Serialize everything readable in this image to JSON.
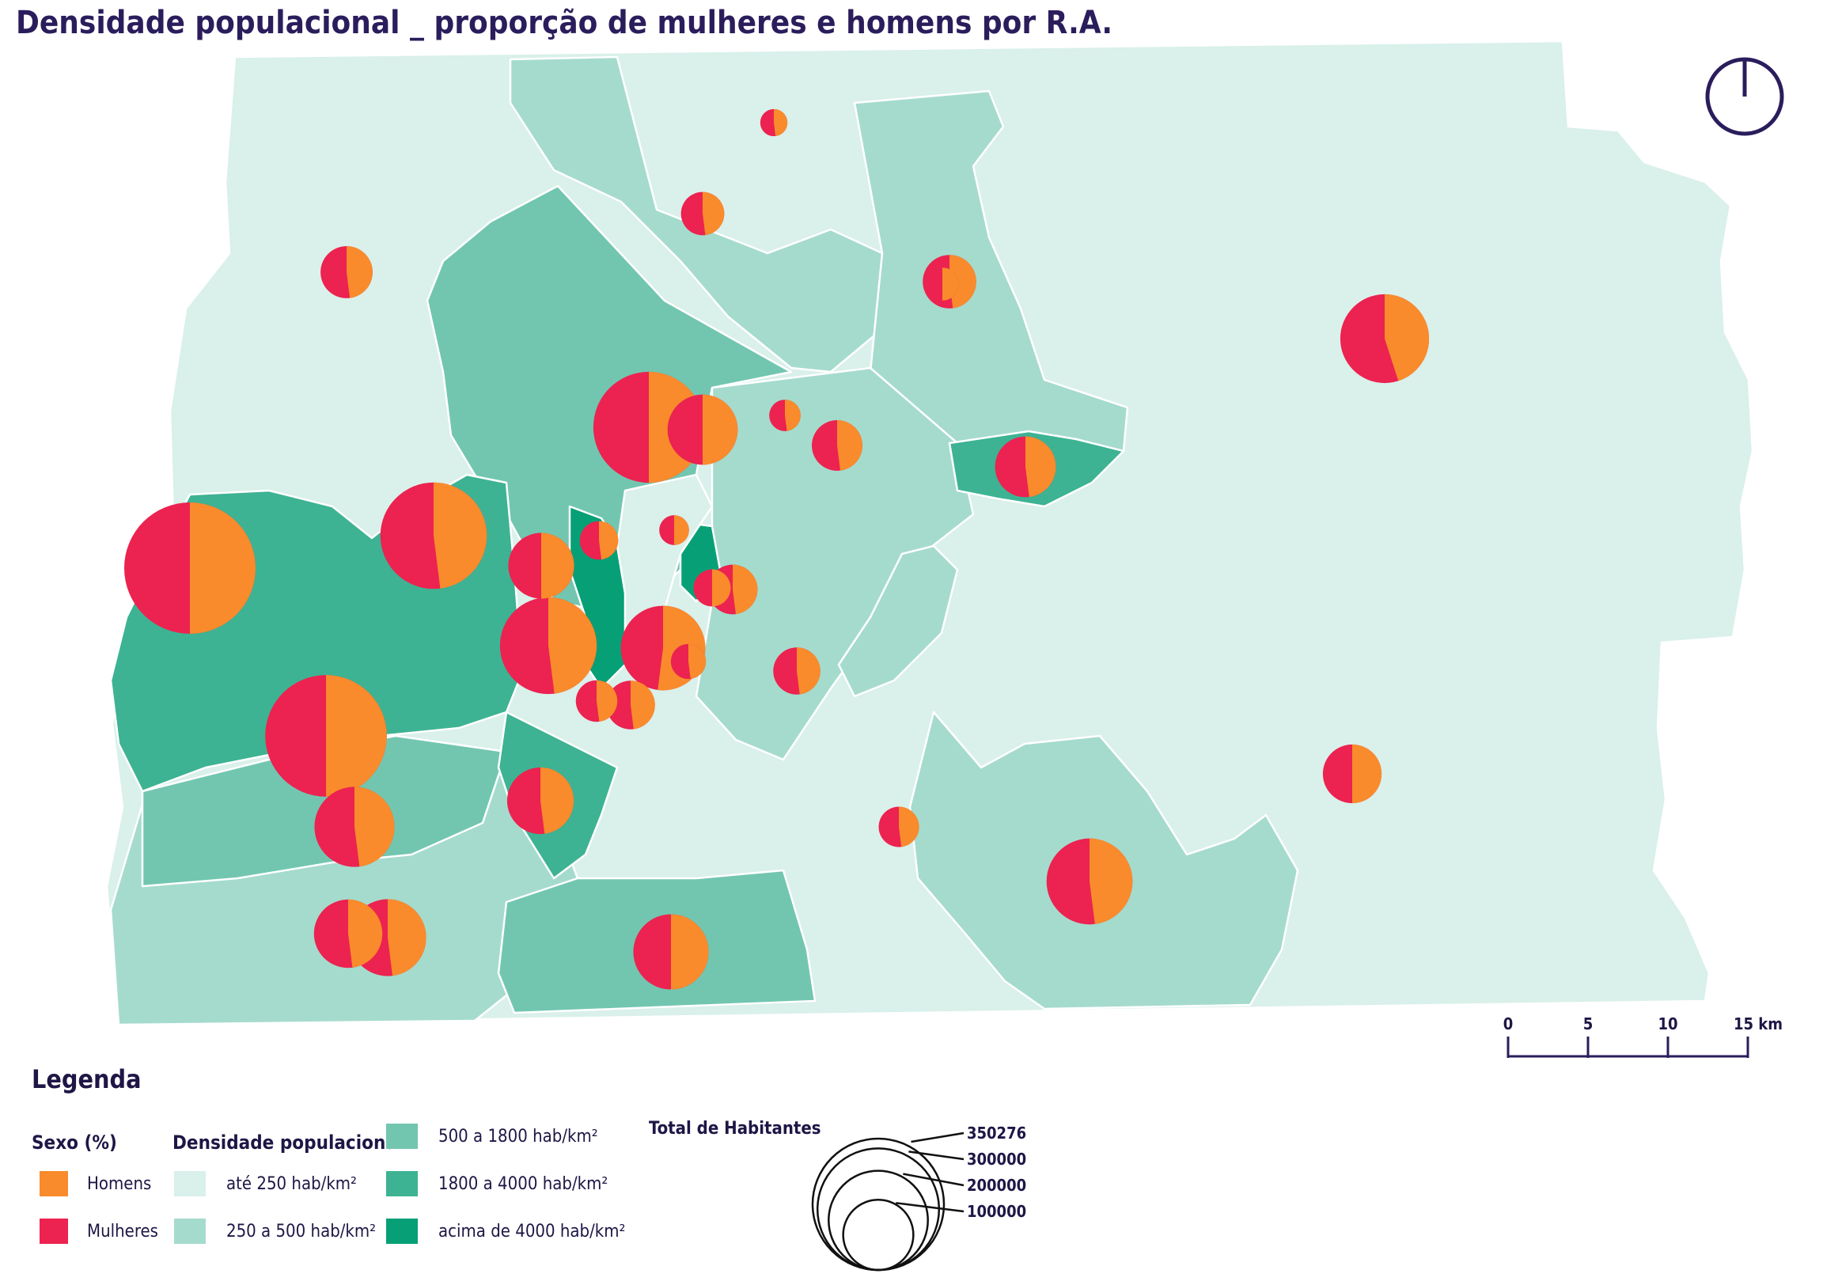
{
  "title": "Densidade populacional _ proporção de mulheres e homens por R.A.",
  "colors": {
    "homens": "#f98b2c",
    "mulheres": "#ec2250",
    "dens_ate_250": "#daf0ea",
    "dens_250_500": "#a5dbcd",
    "dens_500_1800": "#72c6b0",
    "dens_1800_4000": "#3db393",
    "dens_acima_4000": "#07a076",
    "ink": "#2b1d5c"
  },
  "north_arrow": {
    "icon": "north-arrow-icon"
  },
  "scale_bar": {
    "ticks": [
      "0",
      "5",
      "10",
      "15 km"
    ]
  },
  "legend": {
    "title": "Legenda",
    "sexo": {
      "title": "Sexo (%)",
      "items": [
        {
          "label": "Homens",
          "color": "#f98b2c"
        },
        {
          "label": "Mulheres",
          "color": "#ec2250"
        }
      ]
    },
    "densidade": {
      "title": "Densidade populacional",
      "items": [
        {
          "label": "até 250 hab/km²",
          "color": "#daf0ea"
        },
        {
          "label": "250 a 500 hab/km²",
          "color": "#a5dbcd"
        },
        {
          "label": "500 a 1800 hab/km²",
          "color": "#72c6b0"
        },
        {
          "label": "1800 a 4000 hab/km²",
          "color": "#3db393"
        },
        {
          "label": "acima de 4000 hab/km²",
          "color": "#07a076"
        }
      ]
    },
    "habitantes": {
      "title": "Total de Habitantes",
      "values": [
        "350276",
        "300000",
        "200000",
        "100000"
      ]
    }
  },
  "pies": [
    {
      "pop": 350276,
      "homens_pct": 50
    },
    {
      "pop": 300000,
      "homens_pct": 50
    },
    {
      "pop": 250000,
      "homens_pct": 50
    },
    {
      "pop": 230000,
      "homens_pct": 48
    },
    {
      "pop": 190000,
      "homens_pct": 48
    },
    {
      "pop": 160000,
      "homens_pct": 45
    },
    {
      "pop": 150000,
      "homens_pct": 48
    },
    {
      "pop": 145000,
      "homens_pct": 52
    },
    {
      "pop": 130000,
      "homens_pct": 48
    },
    {
      "pop": 120000,
      "homens_pct": 48
    },
    {
      "pop": 115000,
      "homens_pct": 50
    },
    {
      "pop": 100000,
      "homens_pct": 50
    },
    {
      "pop": 95000,
      "homens_pct": 48
    },
    {
      "pop": 90000,
      "homens_pct": 48
    },
    {
      "pop": 88000,
      "homens_pct": 50
    },
    {
      "pop": 75000,
      "homens_pct": 48
    },
    {
      "pop": 70000,
      "homens_pct": 50
    },
    {
      "pop": 58000,
      "homens_pct": 48
    },
    {
      "pop": 55000,
      "homens_pct": 48
    },
    {
      "pop": 52000,
      "homens_pct": 48
    },
    {
      "pop": 50000,
      "homens_pct": 48
    },
    {
      "pop": 48000,
      "homens_pct": 48
    },
    {
      "pop": 45000,
      "homens_pct": 48
    },
    {
      "pop": 38000,
      "homens_pct": 48
    },
    {
      "pop": 35000,
      "homens_pct": 48
    },
    {
      "pop": 33000,
      "homens_pct": 48
    },
    {
      "pop": 30000,
      "homens_pct": 48
    },
    {
      "pop": 28000,
      "homens_pct": 50
    },
    {
      "pop": 25000,
      "homens_pct": 48
    },
    {
      "pop": 22000,
      "homens_pct": 50
    },
    {
      "pop": 20000,
      "homens_pct": 48
    },
    {
      "pop": 18000,
      "homens_pct": 50
    },
    {
      "pop": 15000,
      "homens_pct": 48
    }
  ]
}
